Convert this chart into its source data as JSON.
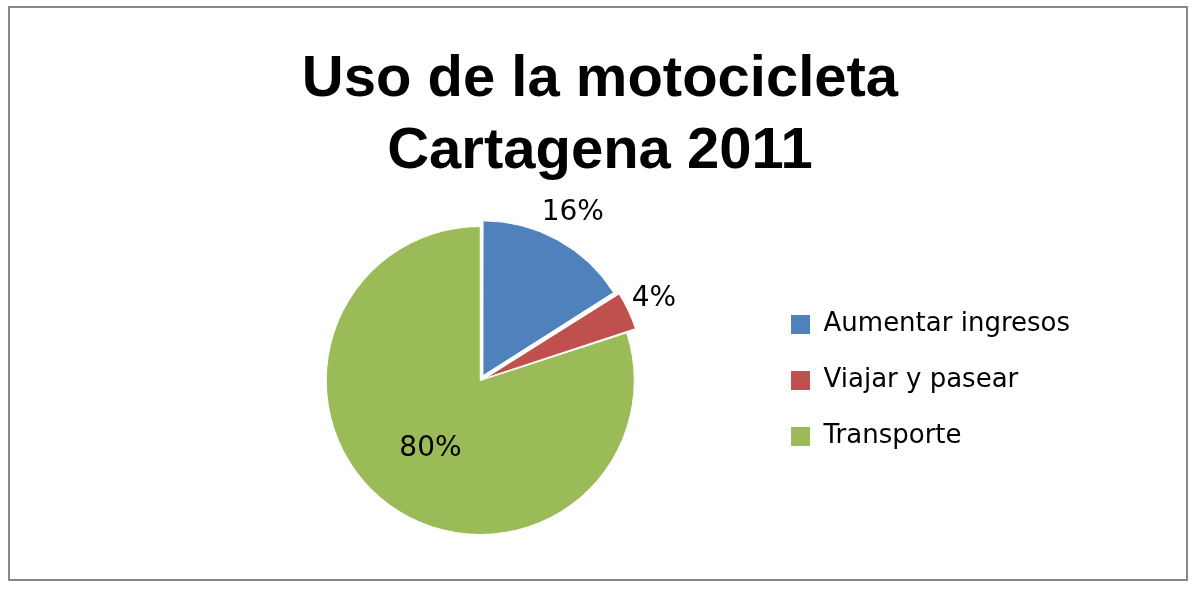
{
  "chart_data": {
    "type": "pie",
    "title": "Uso de la motocicleta Cartagena 2011",
    "categories": [
      "Aumentar ingresos",
      "Viajar y pasear",
      "Transporte"
    ],
    "values": [
      16,
      4,
      80
    ],
    "colors": [
      "#4f81bd",
      "#c0504d",
      "#9bbb59"
    ],
    "value_labels": [
      "16%",
      "4%",
      "80%"
    ],
    "legend": "right"
  }
}
